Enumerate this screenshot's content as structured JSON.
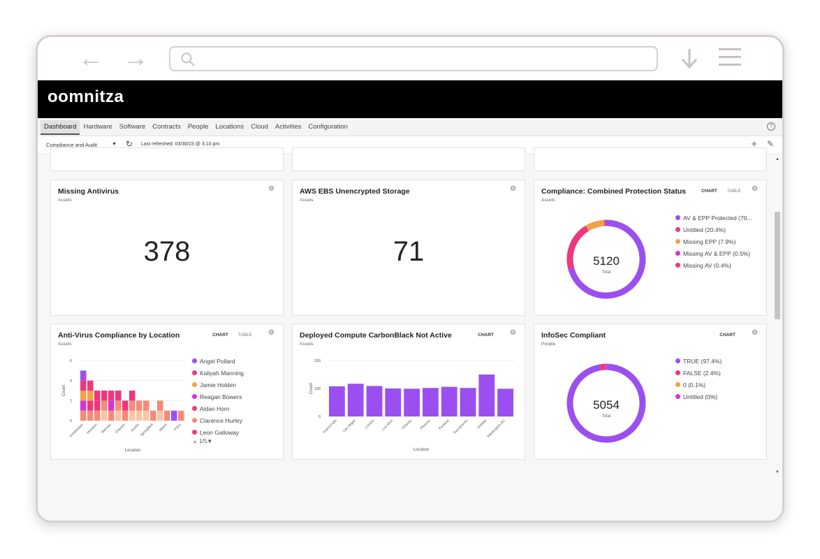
{
  "browser": {
    "back_icon": "arrow-left-icon",
    "forward_icon": "arrow-right-icon",
    "search_icon": "search-icon",
    "address": "",
    "download_icon": "download-icon",
    "menu_icon": "hamburger-icon"
  },
  "brand": {
    "logo": "oomnitza"
  },
  "menu": {
    "items": [
      "Dashboard",
      "Hardware",
      "Software",
      "Contracts",
      "People",
      "Locations",
      "Cloud",
      "Activities",
      "Configuration"
    ],
    "active": "Dashboard"
  },
  "toolbar": {
    "dashboard_select": "Compliance and Audit",
    "last_refreshed": "Last refreshed: 03/30/23 @ 3:10 pm"
  },
  "colors": {
    "purple": "#9b4ff0",
    "pink": "#f0367d",
    "orange": "#f3a04a",
    "magenta": "#d534d5",
    "salmon": "#f58a79",
    "peach": "#f8c5a4",
    "brand_bg": "#000000"
  },
  "cards": {
    "missing_antivirus": {
      "title": "Missing Antivirus",
      "subtitle": "Assets",
      "value": "378"
    },
    "aws_ebs": {
      "title": "AWS EBS Unencrypted Storage",
      "subtitle": "Assets",
      "value": "71"
    },
    "combined": {
      "title": "Compliance: Combined Protection Status",
      "subtitle": "Assets",
      "tab_chart": "CHART",
      "tab_table": "TABLE",
      "total": "5120",
      "total_label": "Total",
      "legend": [
        "AV & EPP Protected (70...",
        "Untitled (20.4%)",
        "Missing EPP (7.9%)",
        "Missing AV & EPP (0.5%)",
        "Missing AV (0.4%)"
      ]
    },
    "av_location": {
      "title": "Anti-Virus Compliance by Location",
      "subtitle": "Assets",
      "tab_chart": "CHART",
      "tab_table": "TABLE",
      "ylabel": "Count",
      "xlabel": "Location",
      "legend": [
        "Angel Pollard",
        "Kaliyah Manning",
        "Jamie Holden",
        "Reagan Bowers",
        "Aidan Horn",
        "Clarence Hurley",
        "Leon Galloway"
      ],
      "pager": "1/5"
    },
    "carbonblack": {
      "title": "Deployed Compute CarbonBlack Not Active",
      "subtitle": "Assets",
      "tab_chart": "CHART",
      "ylabel": "Count",
      "xlabel": "Location"
    },
    "infosec": {
      "title": "InfoSec Compliant",
      "subtitle": "People",
      "tab_chart": "CHART",
      "total": "5054",
      "total_label": "Total",
      "legend": [
        "TRUE (97.4%)",
        "FALSE (2.4%)",
        "0 (0.1%)",
        "Untitled (0%)"
      ]
    }
  },
  "chart_data": [
    {
      "type": "pie",
      "chart": "Compliance: Combined Protection Status",
      "labels": [
        "AV & EPP Protected",
        "Untitled",
        "Missing EPP",
        "Missing AV & EPP",
        "Missing AV"
      ],
      "values": [
        70.8,
        20.4,
        7.9,
        0.5,
        0.4
      ],
      "colors": [
        "#9b4ff0",
        "#f0367d",
        "#f3a04a",
        "#d534d5",
        "#f0367d"
      ]
    },
    {
      "type": "bar",
      "chart": "Anti-Virus Compliance by Location",
      "categories": [
        "Amsterdam",
        "",
        "Houston",
        "",
        "Warsaw",
        "",
        "Orlando",
        "",
        "Austin",
        "",
        "Springfield",
        "",
        "Miami",
        "",
        "Paris"
      ],
      "series": [
        {
          "name": "Angel Pollard",
          "values": [
            1,
            0,
            0,
            0,
            0,
            0,
            0,
            0,
            0,
            0,
            0,
            0,
            0,
            1,
            0
          ]
        },
        {
          "name": "Kaliyah Manning",
          "values": [
            1,
            1,
            1,
            0,
            1,
            0,
            0,
            0,
            0,
            0,
            0,
            0,
            0,
            0,
            0
          ]
        },
        {
          "name": "Jamie Holden",
          "values": [
            1,
            1,
            0,
            0,
            0,
            0,
            0,
            0,
            0,
            0,
            0,
            0,
            0,
            0,
            0
          ]
        },
        {
          "name": "Reagan Bowers",
          "values": [
            1,
            0,
            0,
            0,
            1,
            0,
            0,
            0,
            0,
            0,
            0,
            0,
            0,
            0,
            0
          ]
        },
        {
          "name": "Aidan Horn",
          "values": [
            0,
            1,
            1,
            1,
            0,
            1,
            1,
            1,
            0,
            0,
            0,
            0,
            0,
            0,
            0
          ]
        },
        {
          "name": "Clarence Hurley",
          "values": [
            1,
            1,
            1,
            1,
            1,
            1,
            1,
            1,
            1,
            1,
            1,
            1,
            1,
            0,
            1
          ]
        },
        {
          "name": "Leon Galloway",
          "values": [
            0,
            0,
            0,
            1,
            0,
            1,
            0,
            1,
            1,
            1,
            0,
            1,
            0,
            0,
            0
          ]
        }
      ],
      "yticks": [
        0,
        2,
        4,
        6
      ],
      "ylim": [
        0,
        6
      ],
      "ylabel": "Count",
      "xlabel": "Location"
    },
    {
      "type": "bar",
      "chart": "Deployed Compute CarbonBlack Not Active",
      "categories": [
        "Grand Falls",
        "Las Vegas",
        "London",
        "Los Altos",
        "Orlando",
        "Phoenix",
        "Portland",
        "Sacramento",
        "Untitled",
        "Washington DC"
      ],
      "values": [
        108,
        117,
        109,
        100,
        99,
        102,
        106,
        102,
        150,
        99
      ],
      "yticks": [
        0,
        100,
        200
      ],
      "ylim": [
        0,
        200
      ],
      "ylabel": "Count",
      "xlabel": "Location"
    },
    {
      "type": "pie",
      "chart": "InfoSec Compliant",
      "labels": [
        "TRUE",
        "FALSE",
        "0",
        "Untitled"
      ],
      "values": [
        97.4,
        2.4,
        0.1,
        0
      ],
      "colors": [
        "#9b4ff0",
        "#f0367d",
        "#f3a04a",
        "#d534d5"
      ]
    }
  ]
}
